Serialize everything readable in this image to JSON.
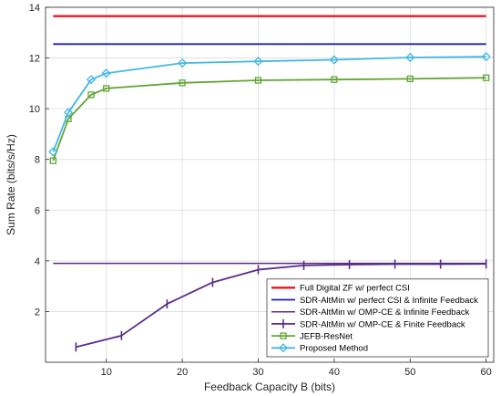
{
  "chart_data": {
    "type": "line",
    "title": "",
    "xlabel": "Feedback Capacity B (bits)",
    "ylabel": "Sum Rate (bits/s/Hz)",
    "xlim": [
      2,
      61
    ],
    "ylim": [
      0,
      14
    ],
    "x_ticks": [
      10,
      20,
      30,
      40,
      50,
      60
    ],
    "y_ticks": [
      2,
      4,
      6,
      8,
      10,
      12,
      14
    ],
    "grid": true,
    "legend_position": "bottom-right",
    "series": [
      {
        "name": "Full Digital ZF w/ perfect CSI",
        "color": "#e8191f",
        "marker": "none",
        "line_width": 2.4,
        "x": [
          3,
          60
        ],
        "y": [
          13.65,
          13.65
        ]
      },
      {
        "name": "SDR-AltMin w/ perfect CSI & Infinite Feedback",
        "color": "#1f1fb4",
        "marker": "none",
        "line_width": 1.8,
        "x": [
          3,
          60
        ],
        "y": [
          12.55,
          12.55
        ]
      },
      {
        "name": "SDR-AltMin w/ OMP-CE & Infinite Feedback",
        "color": "#5b2c86",
        "marker": "none",
        "line_width": 1.5,
        "x": [
          3,
          60
        ],
        "y": [
          3.9,
          3.9
        ]
      },
      {
        "name": "SDR-AltMin w/ OMP-CE & Finite Feedback",
        "color": "#5b2c86",
        "marker": "vbar",
        "line_width": 1.8,
        "x": [
          6,
          12,
          18,
          24,
          30,
          36,
          42,
          48,
          54,
          60
        ],
        "y": [
          0.6,
          1.05,
          2.3,
          3.15,
          3.65,
          3.82,
          3.85,
          3.87,
          3.87,
          3.88
        ]
      },
      {
        "name": "JEFB-ResNet",
        "color": "#62a534",
        "marker": "square",
        "line_width": 1.8,
        "x": [
          3,
          5,
          8,
          10,
          20,
          30,
          40,
          50,
          60
        ],
        "y": [
          7.95,
          9.6,
          10.55,
          10.8,
          11.02,
          11.12,
          11.15,
          11.18,
          11.22
        ]
      },
      {
        "name": "Proposed Method",
        "color": "#43b8e0",
        "marker": "diamond",
        "line_width": 1.8,
        "x": [
          3,
          5,
          8,
          10,
          20,
          30,
          40,
          50,
          60
        ],
        "y": [
          8.3,
          9.85,
          11.15,
          11.4,
          11.8,
          11.87,
          11.93,
          12.02,
          12.05
        ]
      }
    ]
  }
}
